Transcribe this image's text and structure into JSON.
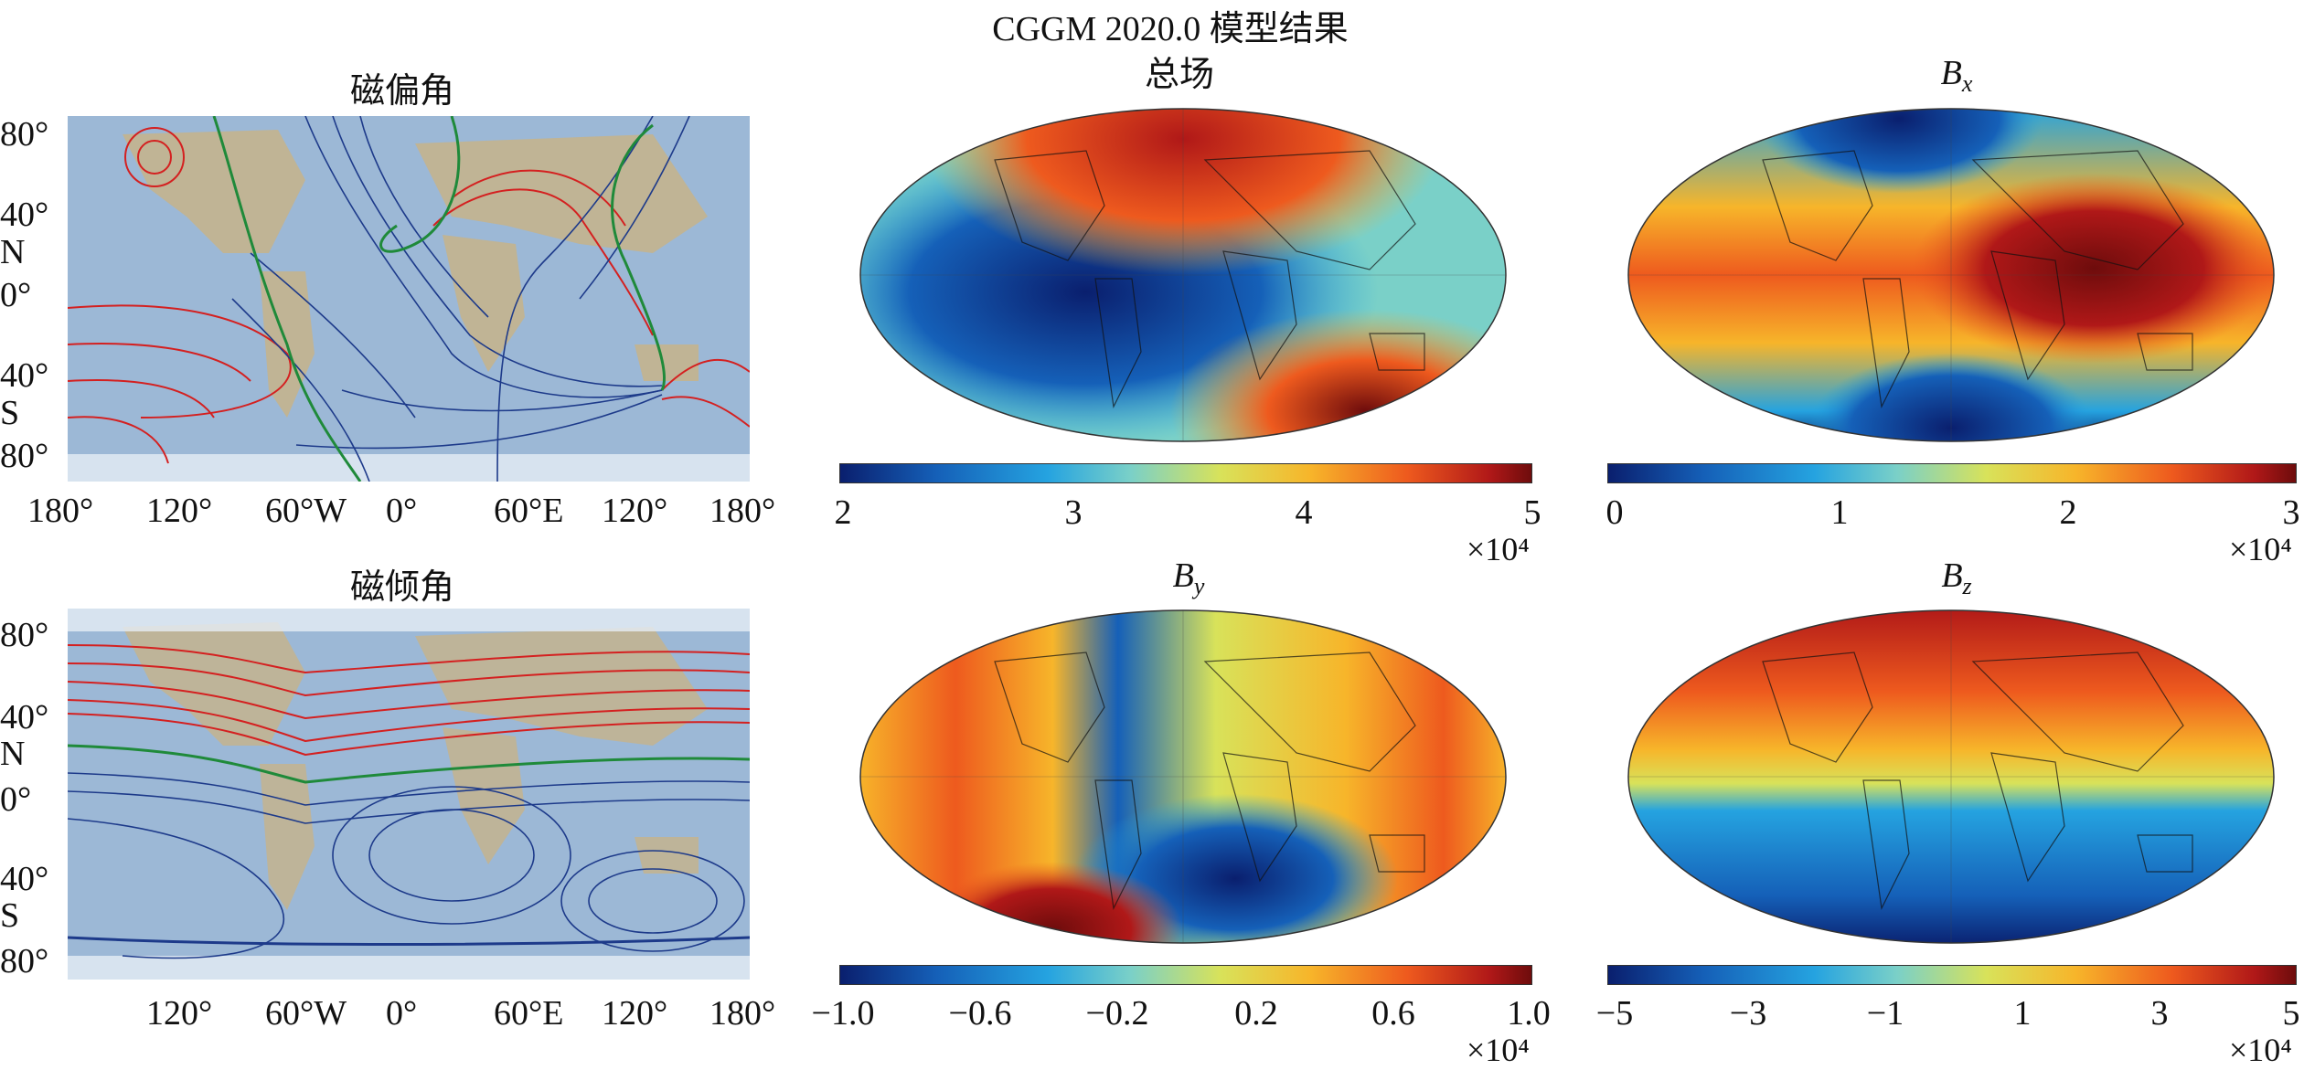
{
  "figure": {
    "main_title": "CGGM 2020.0 模型结果"
  },
  "panels": {
    "declination": {
      "title": "磁偏角",
      "lat_ticks": [
        "80°",
        "40°",
        "N",
        "0°",
        "40°",
        "S",
        "80°"
      ],
      "lon_ticks": [
        "180°",
        "120°",
        "60°W",
        "0°",
        "60°E",
        "120°",
        "180°"
      ]
    },
    "inclination": {
      "title": "磁倾角",
      "lat_ticks": [
        "80°",
        "40°",
        "N",
        "0°",
        "40°",
        "S",
        "80°"
      ],
      "lon_ticks": [
        "120°",
        "60°W",
        "0°",
        "60°E",
        "120°",
        "180°"
      ]
    },
    "total": {
      "title": "总场",
      "cbar_ticks": [
        "2",
        "3",
        "4",
        "5"
      ],
      "multiplier": "×10⁴"
    },
    "bx": {
      "title_main": "B",
      "title_sub": "x",
      "cbar_ticks": [
        "0",
        "1",
        "2",
        "3"
      ],
      "multiplier": "×10⁴"
    },
    "by": {
      "title_main": "B",
      "title_sub": "y",
      "cbar_ticks": [
        "−1.0",
        "−0.6",
        "−0.2",
        "0.2",
        "0.6",
        "1.0"
      ],
      "multiplier": "×10⁴"
    },
    "bz": {
      "title_main": "B",
      "title_sub": "z",
      "cbar_ticks": [
        "−5",
        "−3",
        "−1",
        "1",
        "3",
        "5"
      ],
      "multiplier": "×10⁴"
    }
  },
  "colors": {
    "ocean": "#9cb8d6",
    "land": "#c7b38a",
    "contour_red": "#d42020",
    "contour_blue": "#1d3a8a",
    "contour_green": "#1f8a3a",
    "cmap_low": "#0a1f6e",
    "cmap_high": "#6e0c0c"
  }
}
